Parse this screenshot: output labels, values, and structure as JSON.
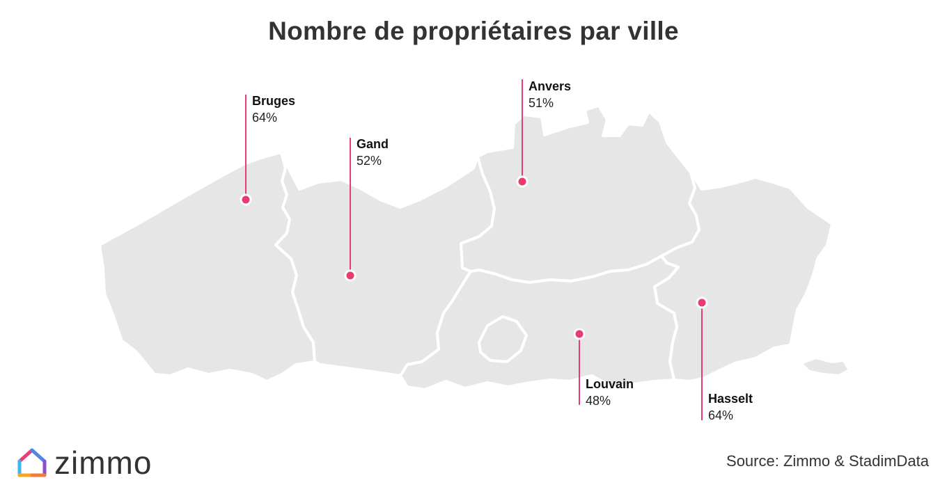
{
  "title": "Nombre de propriétaires par ville",
  "brand": {
    "logo_text": "zimmo",
    "colors": {
      "accent": "#e63d6e",
      "map_fill": "#e6e6e6",
      "border": "#ffffff",
      "text": "#333333"
    }
  },
  "source": "Source: Zimmo & StadimData",
  "cities": [
    {
      "name": "Bruges",
      "value": "64%"
    },
    {
      "name": "Gand",
      "value": "52%"
    },
    {
      "name": "Anvers",
      "value": "51%"
    },
    {
      "name": "Louvain",
      "value": "48%"
    },
    {
      "name": "Hasselt",
      "value": "64%"
    }
  ],
  "icons": [
    "house-logo-icon"
  ]
}
